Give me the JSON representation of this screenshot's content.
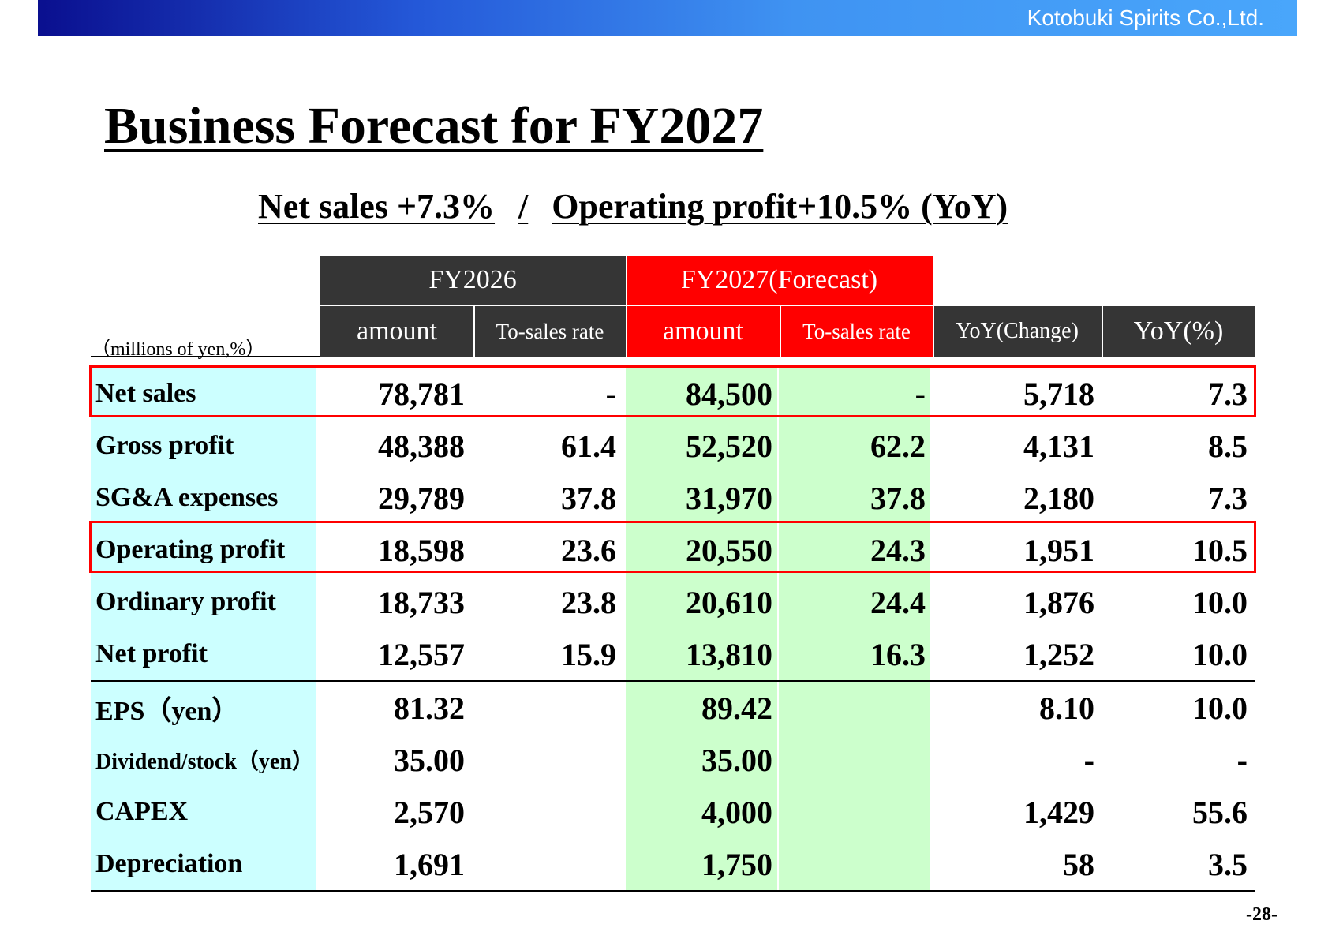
{
  "header": {
    "company": "Kotobuki Spirits Co.,Ltd."
  },
  "title": "Business Forecast for FY2027",
  "subtitle": {
    "left": "Net sales +7.3%",
    "separator": "/",
    "right": "Operating profit+10.5% (YoY)"
  },
  "table": {
    "units": "（millions of yen,%）",
    "group_headers": {
      "fy2026": "FY2026",
      "fy2027": "FY2027(Forecast)"
    },
    "columns": {
      "fy2026_amount": "amount",
      "fy2026_rate": "To-sales rate",
      "fy2027_amount": "amount",
      "fy2027_rate": "To-sales rate",
      "yoy_change": "YoY(Change)",
      "yoy_pct": "YoY(%)"
    },
    "rows": [
      {
        "label": "Net sales",
        "a26": "78,781",
        "r26": "-",
        "a27": "84,500",
        "r27": "-",
        "chg": "5,718",
        "pct": "7.3"
      },
      {
        "label": "Gross profit",
        "a26": "48,388",
        "r26": "61.4",
        "a27": "52,520",
        "r27": "62.2",
        "chg": "4,131",
        "pct": "8.5"
      },
      {
        "label": "SG&A expenses",
        "a26": "29,789",
        "r26": "37.8",
        "a27": "31,970",
        "r27": "37.8",
        "chg": "2,180",
        "pct": "7.3"
      },
      {
        "label": "Operating profit",
        "a26": "18,598",
        "r26": "23.6",
        "a27": "20,550",
        "r27": "24.3",
        "chg": "1,951",
        "pct": "10.5"
      },
      {
        "label": "Ordinary profit",
        "a26": "18,733",
        "r26": "23.8",
        "a27": "20,610",
        "r27": "24.4",
        "chg": "1,876",
        "pct": "10.0"
      },
      {
        "label": "Net profit",
        "a26": "12,557",
        "r26": "15.9",
        "a27": "13,810",
        "r27": "16.3",
        "chg": "1,252",
        "pct": "10.0"
      },
      {
        "label": "EPS（yen）",
        "a26": "81.32",
        "r26": "",
        "a27": "89.42",
        "r27": "",
        "chg": "8.10",
        "pct": "10.0"
      },
      {
        "label": "Dividend/stock（yen）",
        "a26": "35.00",
        "r26": "",
        "a27": "35.00",
        "r27": "",
        "chg": "-",
        "pct": "-"
      },
      {
        "label": "CAPEX",
        "a26": "2,570",
        "r26": "",
        "a27": "4,000",
        "r27": "",
        "chg": "1,429",
        "pct": "55.6"
      },
      {
        "label": "Depreciation",
        "a26": "1,691",
        "r26": "",
        "a27": "1,750",
        "r27": "",
        "chg": "58",
        "pct": "3.5"
      }
    ]
  },
  "page_number": "-28-",
  "colors": {
    "header_dark": "#353535",
    "header_red": "#ff0000",
    "label_cyan": "#ccffff",
    "forecast_green": "#ccffcc",
    "highlight_border": "#ff0000"
  }
}
